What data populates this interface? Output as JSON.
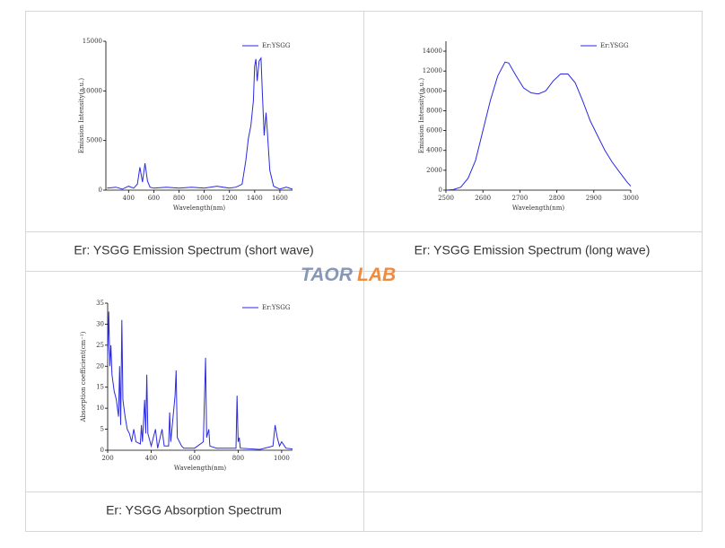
{
  "table": {
    "captions": [
      "Er: YSGG Emission Spectrum (short wave)",
      "Er: YSGG Emission Spectrum (long wave)",
      "Er: YSGG Absorption Spectrum"
    ]
  },
  "logo": [
    "TAOR",
    "LAB"
  ],
  "chart_data": [
    {
      "type": "line",
      "x_label": "Wavelength(nm)",
      "y_label": "Emission Intensity(a.u.)",
      "xlim": [
        220,
        1700
      ],
      "xticks": [
        400,
        600,
        800,
        1000,
        1200,
        1400,
        1600
      ],
      "ylim": [
        0,
        15000
      ],
      "yticks": [
        0,
        5000,
        10000,
        15000
      ],
      "legend": "upper right",
      "x": [
        230,
        300,
        350,
        400,
        440,
        470,
        490,
        510,
        530,
        550,
        570,
        600,
        700,
        800,
        900,
        1000,
        1100,
        1200,
        1250,
        1300,
        1330,
        1350,
        1370,
        1390,
        1400,
        1410,
        1420,
        1435,
        1450,
        1460,
        1475,
        1490,
        1500,
        1520,
        1550,
        1600,
        1650,
        1700
      ],
      "series": [
        {
          "name": "Er:YSGG",
          "color": "#2a2ae0",
          "values": [
            200,
            300,
            100,
            400,
            200,
            600,
            2300,
            800,
            2700,
            900,
            300,
            200,
            300,
            200,
            300,
            200,
            400,
            200,
            300,
            600,
            3000,
            5200,
            6500,
            9000,
            12500,
            13200,
            11000,
            13000,
            13300,
            10000,
            5500,
            7800,
            6000,
            2000,
            400,
            100,
            300,
            100
          ]
        }
      ]
    },
    {
      "type": "line",
      "x_label": "Wavelength(nm)",
      "y_label": "Emission Intensity(a.u.)",
      "xlim": [
        2500,
        3000
      ],
      "xticks": [
        2500,
        2600,
        2700,
        2800,
        2900,
        3000
      ],
      "ylim": [
        0,
        15000
      ],
      "yticks": [
        0,
        2000,
        4000,
        6000,
        8000,
        10000,
        12000,
        14000
      ],
      "legend": "upper right",
      "x": [
        2500,
        2520,
        2540,
        2560,
        2580,
        2600,
        2620,
        2640,
        2660,
        2670,
        2690,
        2710,
        2730,
        2750,
        2770,
        2790,
        2810,
        2830,
        2850,
        2870,
        2890,
        2910,
        2930,
        2950,
        2970,
        2990,
        3000
      ],
      "series": [
        {
          "name": "Er:YSGG",
          "color": "#2a2ae0",
          "values": [
            0,
            50,
            300,
            1200,
            3000,
            6000,
            9000,
            11500,
            12900,
            12800,
            11500,
            10300,
            9800,
            9700,
            10000,
            11000,
            11700,
            11700,
            10800,
            9000,
            7000,
            5500,
            4000,
            2800,
            1800,
            800,
            400
          ]
        }
      ]
    },
    {
      "type": "line",
      "x_label": "Wavelength(nm)",
      "y_label": "Absorption coefficient(cm⁻¹)",
      "xlim": [
        200,
        1050
      ],
      "xticks": [
        200,
        400,
        600,
        800,
        1000
      ],
      "ylim": [
        0,
        35
      ],
      "yticks": [
        0,
        5,
        10,
        15,
        20,
        25,
        30,
        35
      ],
      "legend": "upper right",
      "x": [
        200,
        205,
        210,
        215,
        220,
        230,
        240,
        250,
        255,
        260,
        265,
        270,
        280,
        290,
        300,
        310,
        320,
        330,
        350,
        355,
        360,
        370,
        375,
        380,
        385,
        400,
        420,
        430,
        450,
        460,
        480,
        485,
        490,
        510,
        515,
        520,
        540,
        550,
        600,
        640,
        650,
        655,
        665,
        670,
        700,
        790,
        795,
        800,
        805,
        810,
        900,
        960,
        970,
        980,
        990,
        1000,
        1020,
        1050
      ],
      "series": [
        {
          "name": "Er:YSGG",
          "color": "#2a2ae0",
          "values": [
            22,
            33,
            20,
            25,
            18,
            14,
            12,
            8,
            20,
            6,
            31,
            12,
            8,
            5,
            4,
            2,
            5,
            2,
            1.5,
            6,
            2,
            12,
            4,
            18,
            4,
            1,
            5,
            0.5,
            5,
            1,
            1,
            9,
            2,
            13,
            19,
            3,
            1,
            0.5,
            0.5,
            2,
            22,
            3,
            5,
            1,
            0.5,
            0.5,
            13,
            2,
            3,
            0.5,
            0.2,
            1,
            6,
            3,
            1,
            2,
            0.5,
            0.3
          ]
        }
      ]
    }
  ]
}
